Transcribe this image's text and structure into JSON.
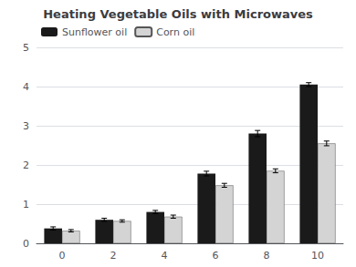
{
  "chart_data": {
    "type": "bar",
    "title": "Heating Vegetable Oils with Microwaves",
    "categories": [
      "0",
      "2",
      "4",
      "6",
      "8",
      "10"
    ],
    "series": [
      {
        "name": "Sunflower oil",
        "color": "#1a1a1a",
        "values": [
          0.38,
          0.6,
          0.8,
          1.78,
          2.8,
          4.05
        ],
        "errors": [
          0.04,
          0.04,
          0.04,
          0.06,
          0.08,
          0.05
        ]
      },
      {
        "name": "Corn oil",
        "color": "#d4d4d4",
        "values": [
          0.32,
          0.57,
          0.68,
          1.48,
          1.85,
          2.55
        ],
        "errors": [
          0.03,
          0.03,
          0.04,
          0.05,
          0.05,
          0.06
        ]
      }
    ],
    "ylim": [
      0,
      5
    ],
    "yticks": [
      0,
      1,
      2,
      3,
      4,
      5
    ],
    "grid": true,
    "legend": "upper left"
  }
}
